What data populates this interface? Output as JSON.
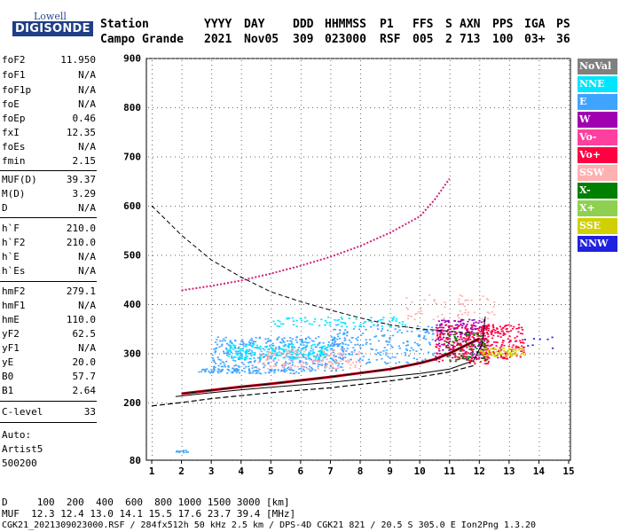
{
  "logo": {
    "top": "Lowell",
    "main": "DIGISONDE"
  },
  "header": {
    "row1": [
      "Station",
      "YYYY",
      "DAY",
      "DDD",
      "HHMMSS",
      "P1",
      "FFS",
      "S",
      "AXN",
      "PPS",
      "IGA",
      "PS"
    ],
    "row2": [
      "Campo Grande",
      "2021",
      "Nov05",
      "309",
      "023000",
      "RSF",
      "005",
      "2",
      "713",
      "100",
      "03+",
      "36"
    ]
  },
  "params": [
    {
      "name": "foF2",
      "value": "11.950"
    },
    {
      "name": "foF1",
      "value": "N/A"
    },
    {
      "name": "foF1p",
      "value": "N/A"
    },
    {
      "name": "foE",
      "value": "N/A"
    },
    {
      "name": "foEp",
      "value": "0.46"
    },
    {
      "name": "fxI",
      "value": "12.35"
    },
    {
      "name": "foEs",
      "value": "N/A"
    },
    {
      "name": "fmin",
      "value": "2.15"
    },
    {
      "name": "MUF(D)",
      "value": "39.37"
    },
    {
      "name": "M(D)",
      "value": "3.29"
    },
    {
      "name": "D",
      "value": "N/A"
    },
    {
      "name": "h`F",
      "value": "210.0"
    },
    {
      "name": "h`F2",
      "value": "210.0"
    },
    {
      "name": "h`E",
      "value": "N/A"
    },
    {
      "name": "h`Es",
      "value": "N/A"
    },
    {
      "name": "hmF2",
      "value": "279.1"
    },
    {
      "name": "hmF1",
      "value": "N/A"
    },
    {
      "name": "hmE",
      "value": "110.0"
    },
    {
      "name": "yF2",
      "value": "62.5"
    },
    {
      "name": "yF1",
      "value": "N/A"
    },
    {
      "name": "yE",
      "value": "20.0"
    },
    {
      "name": "B0",
      "value": "57.7"
    },
    {
      "name": "B1",
      "value": "2.64"
    },
    {
      "name": "C-level",
      "value": "33"
    }
  ],
  "notes": [
    "Auto:",
    "Artist5",
    "500200"
  ],
  "bottom": {
    "d_row": "D     100  200  400  600  800 1000 1500 3000 [km]",
    "muf_row": "MUF  12.3 12.4 13.0 14.1 15.5 17.6 23.7 39.4 [MHz]",
    "info_row": "CGK21_2021309023000.RSF / 284fx512h 50 kHz 2.5 km / DPS-4D CGK21 821 / 20.5 S 305.0 E Ion2Png 1.3.20"
  },
  "chart_data": {
    "type": "scatter",
    "x_ticks": [
      1,
      2,
      3,
      4,
      5,
      6,
      7,
      8,
      9,
      10,
      11,
      12,
      13,
      14,
      15
    ],
    "y_ticks": [
      80,
      200,
      300,
      400,
      500,
      600,
      700,
      800,
      900
    ],
    "xlim": [
      1,
      15
    ],
    "ylim": [
      80,
      900
    ],
    "grid": true,
    "legend_position": "right",
    "legend": [
      {
        "name": "NoVal",
        "color": "#808080"
      },
      {
        "name": "NNE",
        "color": "#00e5ff"
      },
      {
        "name": "E",
        "color": "#3fa4ff"
      },
      {
        "name": "W",
        "color": "#a000b0"
      },
      {
        "name": "Vo-",
        "color": "#ff3fa0"
      },
      {
        "name": "Vo+",
        "color": "#ff0040"
      },
      {
        "name": "SSW",
        "color": "#ffb0b0"
      },
      {
        "name": "X-",
        "color": "#008000"
      },
      {
        "name": "X+",
        "color": "#90d050"
      },
      {
        "name": "SSE",
        "color": "#d0d000"
      },
      {
        "name": "NNW",
        "color": "#2020e0"
      }
    ],
    "muf_curve": [
      [
        1.0,
        600
      ],
      [
        2,
        540
      ],
      [
        3,
        490
      ],
      [
        4,
        455
      ],
      [
        5,
        425
      ],
      [
        6,
        405
      ],
      [
        7,
        388
      ],
      [
        8,
        372
      ],
      [
        9,
        358
      ],
      [
        10,
        350
      ],
      [
        11,
        345
      ],
      [
        12,
        340
      ]
    ],
    "trace_lower": [
      [
        2.0,
        218
      ],
      [
        3,
        225
      ],
      [
        4,
        232
      ],
      [
        5,
        238
      ],
      [
        6,
        245
      ],
      [
        7,
        252
      ],
      [
        8,
        260
      ],
      [
        9,
        268
      ],
      [
        10,
        280
      ],
      [
        10.5,
        288
      ],
      [
        11,
        300
      ],
      [
        11.5,
        315
      ],
      [
        12,
        330
      ]
    ],
    "trace_upper": [
      [
        1.8,
        212
      ],
      [
        3,
        220
      ],
      [
        4,
        226
      ],
      [
        5,
        231
      ],
      [
        6,
        236
      ],
      [
        7,
        241
      ],
      [
        8,
        247
      ],
      [
        9,
        253
      ],
      [
        10,
        259
      ],
      [
        11,
        268
      ],
      [
        11.8,
        285
      ],
      [
        12.1,
        320
      ],
      [
        12.2,
        375
      ]
    ],
    "edensity_curve": [
      [
        1.0,
        193
      ],
      [
        2,
        200
      ],
      [
        3,
        208
      ],
      [
        4,
        214
      ],
      [
        5,
        220
      ],
      [
        6,
        225
      ],
      [
        7,
        230
      ],
      [
        8,
        237
      ],
      [
        9,
        244
      ],
      [
        10,
        252
      ],
      [
        11,
        262
      ],
      [
        11.8,
        275
      ]
    ],
    "f2_trace": [
      [
        2.0,
        428
      ],
      [
        3,
        437
      ],
      [
        4,
        448
      ],
      [
        5,
        462
      ],
      [
        6,
        478
      ],
      [
        7,
        496
      ],
      [
        8,
        518
      ],
      [
        9,
        545
      ],
      [
        10,
        578
      ],
      [
        10.5,
        612
      ],
      [
        11,
        655
      ]
    ],
    "echo_clusters": [
      {
        "xmin": 3.0,
        "xmax": 7.5,
        "ymin": 265,
        "ymax": 335,
        "color": "#3fa4ff",
        "n": 450
      },
      {
        "xmin": 3.5,
        "xmax": 7.0,
        "ymin": 290,
        "ymax": 320,
        "color": "#00e5ff",
        "n": 200
      },
      {
        "xmin": 4.5,
        "xmax": 8.0,
        "ymin": 270,
        "ymax": 310,
        "color": "#ffb0b0",
        "n": 160
      },
      {
        "xmin": 7.0,
        "xmax": 10.5,
        "ymin": 280,
        "ymax": 360,
        "color": "#3fa4ff",
        "n": 200
      },
      {
        "xmin": 10.5,
        "xmax": 12.2,
        "ymin": 290,
        "ymax": 370,
        "color": "#a000b0",
        "n": 220
      },
      {
        "xmin": 10.5,
        "xmax": 12.3,
        "ymin": 280,
        "ymax": 360,
        "color": "#ff0040",
        "n": 200
      },
      {
        "xmin": 12.0,
        "xmax": 13.5,
        "ymin": 290,
        "ymax": 360,
        "color": "#ff0040",
        "n": 180
      },
      {
        "xmin": 12.0,
        "xmax": 13.5,
        "ymin": 295,
        "ymax": 312,
        "color": "#d0d000",
        "n": 80
      },
      {
        "xmin": 10.8,
        "xmax": 12.2,
        "ymin": 285,
        "ymax": 340,
        "color": "#008000",
        "n": 80
      },
      {
        "xmin": 5.0,
        "xmax": 9.5,
        "ymin": 355,
        "ymax": 375,
        "color": "#00e5ff",
        "n": 80
      },
      {
        "xmin": 2.5,
        "xmax": 6.0,
        "ymin": 260,
        "ymax": 270,
        "color": "#3fa4ff",
        "n": 80
      },
      {
        "xmin": 9.5,
        "xmax": 12.5,
        "ymin": 370,
        "ymax": 420,
        "color": "#ffb0b0",
        "n": 60
      },
      {
        "xmin": 13.5,
        "xmax": 14.5,
        "ymin": 310,
        "ymax": 340,
        "color": "#2020e0",
        "n": 8
      },
      {
        "xmin": 1.8,
        "xmax": 2.2,
        "ymin": 95,
        "ymax": 102,
        "color": "#3fa4ff",
        "n": 12
      }
    ]
  }
}
